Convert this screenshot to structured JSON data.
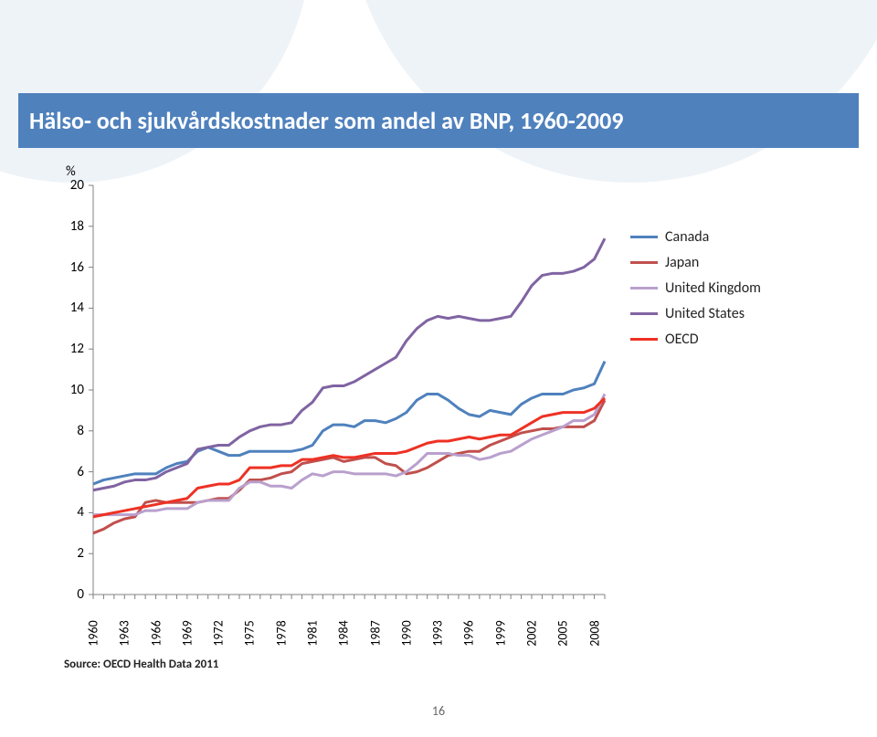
{
  "title": "Hälso- och sjukvårdskostnader som andel av BNP, 1960-2009",
  "title_fontsize": 26,
  "title_color": "#ffffff",
  "band_color": "#4f81bd",
  "background_color": "#ffffff",
  "bg_shape_color": "#eef3f8",
  "source": "Source: OECD Health Data 2011",
  "page_number": "16",
  "chart": {
    "type": "line",
    "y_unit": "%",
    "ylim": [
      0,
      20
    ],
    "ytick_step": 2,
    "yticks": [
      0,
      2,
      4,
      6,
      8,
      10,
      12,
      14,
      16,
      18,
      20
    ],
    "xlim": [
      1960,
      2009
    ],
    "xticks": [
      1960,
      1963,
      1966,
      1969,
      1972,
      1975,
      1978,
      1981,
      1984,
      1987,
      1990,
      1993,
      1996,
      1999,
      2002,
      2005,
      2008
    ],
    "axis_color": "#808080",
    "tick_color": "#808080",
    "label_fontsize": 15,
    "xlabel_fontsize": 14,
    "line_width": 3,
    "legend": {
      "position": "right",
      "fontsize": 16,
      "items": [
        {
          "label": "Canada",
          "color": "#4f81bd"
        },
        {
          "label": "Japan",
          "color": "#c0504d"
        },
        {
          "label": "United Kingdom",
          "color": "#b9a0cd"
        },
        {
          "label": "United States",
          "color": "#8064a2"
        },
        {
          "label": "OECD",
          "color": "#ee3124"
        }
      ]
    },
    "series": [
      {
        "name": "Canada",
        "color": "#4f81bd",
        "x": [
          1960,
          1961,
          1962,
          1963,
          1964,
          1965,
          1966,
          1967,
          1968,
          1969,
          1970,
          1971,
          1972,
          1973,
          1974,
          1975,
          1976,
          1977,
          1978,
          1979,
          1980,
          1981,
          1982,
          1983,
          1984,
          1985,
          1986,
          1987,
          1988,
          1989,
          1990,
          1991,
          1992,
          1993,
          1994,
          1995,
          1996,
          1997,
          1998,
          1999,
          2000,
          2001,
          2002,
          2003,
          2004,
          2005,
          2006,
          2007,
          2008,
          2009
        ],
        "y": [
          5.4,
          5.6,
          5.7,
          5.8,
          5.9,
          5.9,
          5.9,
          6.2,
          6.4,
          6.5,
          7.0,
          7.2,
          7.0,
          6.8,
          6.8,
          7.0,
          7.0,
          7.0,
          7.0,
          7.0,
          7.1,
          7.3,
          8.0,
          8.3,
          8.3,
          8.2,
          8.5,
          8.5,
          8.4,
          8.6,
          8.9,
          9.5,
          9.8,
          9.8,
          9.5,
          9.1,
          8.8,
          8.7,
          9.0,
          8.9,
          8.8,
          9.3,
          9.6,
          9.8,
          9.8,
          9.8,
          10.0,
          10.1,
          10.3,
          11.4
        ]
      },
      {
        "name": "Japan",
        "color": "#c0504d",
        "x": [
          1960,
          1961,
          1962,
          1963,
          1964,
          1965,
          1966,
          1967,
          1968,
          1969,
          1970,
          1971,
          1972,
          1973,
          1974,
          1975,
          1976,
          1977,
          1978,
          1979,
          1980,
          1981,
          1982,
          1983,
          1984,
          1985,
          1986,
          1987,
          1988,
          1989,
          1990,
          1991,
          1992,
          1993,
          1994,
          1995,
          1996,
          1997,
          1998,
          1999,
          2000,
          2001,
          2002,
          2003,
          2004,
          2005,
          2006,
          2007,
          2008,
          2009
        ],
        "y": [
          3.0,
          3.2,
          3.5,
          3.7,
          3.8,
          4.5,
          4.6,
          4.5,
          4.5,
          4.5,
          4.5,
          4.6,
          4.7,
          4.7,
          5.1,
          5.6,
          5.6,
          5.7,
          5.9,
          6.0,
          6.4,
          6.5,
          6.6,
          6.7,
          6.5,
          6.6,
          6.7,
          6.7,
          6.4,
          6.3,
          5.9,
          6.0,
          6.2,
          6.5,
          6.8,
          6.9,
          7.0,
          7.0,
          7.3,
          7.5,
          7.7,
          7.9,
          8.0,
          8.1,
          8.1,
          8.2,
          8.2,
          8.2,
          8.5,
          9.5
        ]
      },
      {
        "name": "United Kingdom",
        "color": "#b9a0cd",
        "x": [
          1960,
          1961,
          1962,
          1963,
          1964,
          1965,
          1966,
          1967,
          1968,
          1969,
          1970,
          1971,
          1972,
          1973,
          1974,
          1975,
          1976,
          1977,
          1978,
          1979,
          1980,
          1981,
          1982,
          1983,
          1984,
          1985,
          1986,
          1987,
          1988,
          1989,
          1990,
          1991,
          1992,
          1993,
          1994,
          1995,
          1996,
          1997,
          1998,
          1999,
          2000,
          2001,
          2002,
          2003,
          2004,
          2005,
          2006,
          2007,
          2008,
          2009
        ],
        "y": [
          3.9,
          3.9,
          3.9,
          3.9,
          3.9,
          4.1,
          4.1,
          4.2,
          4.2,
          4.2,
          4.5,
          4.6,
          4.6,
          4.6,
          5.2,
          5.5,
          5.5,
          5.3,
          5.3,
          5.2,
          5.6,
          5.9,
          5.8,
          6.0,
          6.0,
          5.9,
          5.9,
          5.9,
          5.9,
          5.8,
          6.0,
          6.4,
          6.9,
          6.9,
          6.9,
          6.8,
          6.8,
          6.6,
          6.7,
          6.9,
          7.0,
          7.3,
          7.6,
          7.8,
          8.0,
          8.2,
          8.5,
          8.5,
          8.8,
          9.8
        ]
      },
      {
        "name": "United States",
        "color": "#8064a2",
        "x": [
          1960,
          1961,
          1962,
          1963,
          1964,
          1965,
          1966,
          1967,
          1968,
          1969,
          1970,
          1971,
          1972,
          1973,
          1974,
          1975,
          1976,
          1977,
          1978,
          1979,
          1980,
          1981,
          1982,
          1983,
          1984,
          1985,
          1986,
          1987,
          1988,
          1989,
          1990,
          1991,
          1992,
          1993,
          1994,
          1995,
          1996,
          1997,
          1998,
          1999,
          2000,
          2001,
          2002,
          2003,
          2004,
          2005,
          2006,
          2007,
          2008,
          2009
        ],
        "y": [
          5.1,
          5.2,
          5.3,
          5.5,
          5.6,
          5.6,
          5.7,
          6.0,
          6.2,
          6.4,
          7.1,
          7.2,
          7.3,
          7.3,
          7.7,
          8.0,
          8.2,
          8.3,
          8.3,
          8.4,
          9.0,
          9.4,
          10.1,
          10.2,
          10.2,
          10.4,
          10.7,
          11.0,
          11.3,
          11.6,
          12.4,
          13.0,
          13.4,
          13.6,
          13.5,
          13.6,
          13.5,
          13.4,
          13.4,
          13.5,
          13.6,
          14.3,
          15.1,
          15.6,
          15.7,
          15.7,
          15.8,
          16.0,
          16.4,
          17.4
        ]
      },
      {
        "name": "OECD",
        "color": "#ee3124",
        "x": [
          1960,
          1961,
          1962,
          1963,
          1964,
          1965,
          1966,
          1967,
          1968,
          1969,
          1970,
          1971,
          1972,
          1973,
          1974,
          1975,
          1976,
          1977,
          1978,
          1979,
          1980,
          1981,
          1982,
          1983,
          1984,
          1985,
          1986,
          1987,
          1988,
          1989,
          1990,
          1991,
          1992,
          1993,
          1994,
          1995,
          1996,
          1997,
          1998,
          1999,
          2000,
          2001,
          2002,
          2003,
          2004,
          2005,
          2006,
          2007,
          2008,
          2009
        ],
        "y": [
          3.8,
          3.9,
          4.0,
          4.1,
          4.2,
          4.3,
          4.4,
          4.5,
          4.6,
          4.7,
          5.2,
          5.3,
          5.4,
          5.4,
          5.6,
          6.2,
          6.2,
          6.2,
          6.3,
          6.3,
          6.6,
          6.6,
          6.7,
          6.8,
          6.7,
          6.7,
          6.8,
          6.9,
          6.9,
          6.9,
          7.0,
          7.2,
          7.4,
          7.5,
          7.5,
          7.6,
          7.7,
          7.6,
          7.7,
          7.8,
          7.8,
          8.1,
          8.4,
          8.7,
          8.8,
          8.9,
          8.9,
          8.9,
          9.1,
          9.6
        ]
      }
    ]
  }
}
